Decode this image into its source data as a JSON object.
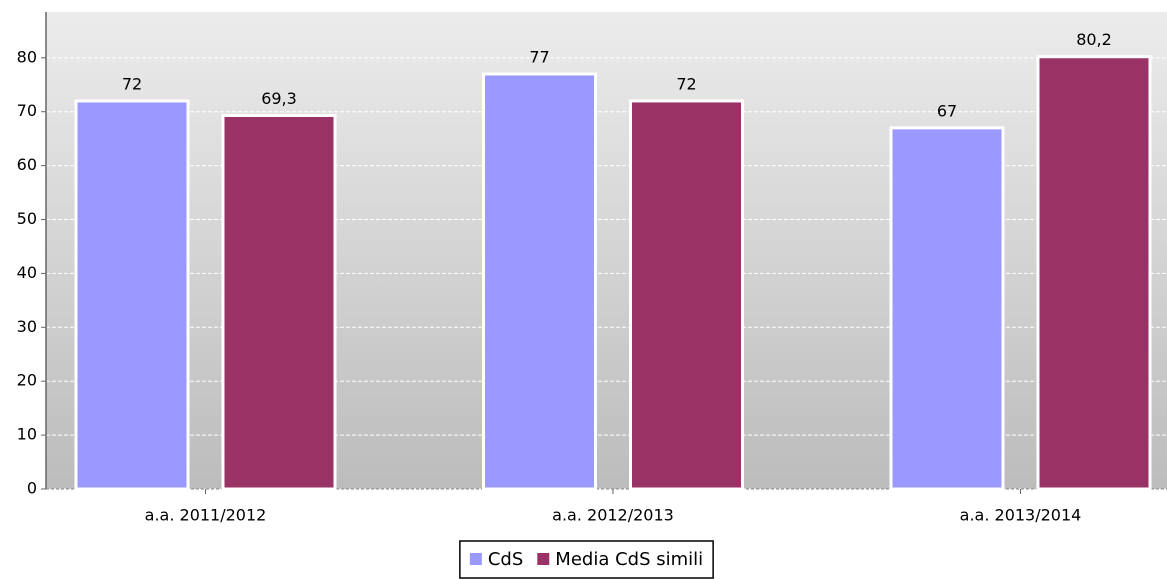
{
  "chart_data": {
    "type": "bar",
    "categories": [
      "a.a. 2011/2012",
      "a.a. 2012/2013",
      "a.a. 2013/2014"
    ],
    "series": [
      {
        "name": "CdS",
        "color": "#9999ff",
        "values": [
          72,
          77,
          67
        ],
        "value_labels": [
          "72",
          "77",
          "67"
        ]
      },
      {
        "name": "Media CdS simili",
        "color": "#993366",
        "values": [
          69.3,
          72,
          80.2
        ],
        "value_labels": [
          "69,3",
          "72",
          "80,2"
        ]
      }
    ],
    "ylim": [
      0,
      88.5
    ],
    "yticks": [
      0,
      10,
      20,
      30,
      40,
      50,
      60,
      70,
      80
    ],
    "grid": true,
    "legend": "bottom"
  }
}
